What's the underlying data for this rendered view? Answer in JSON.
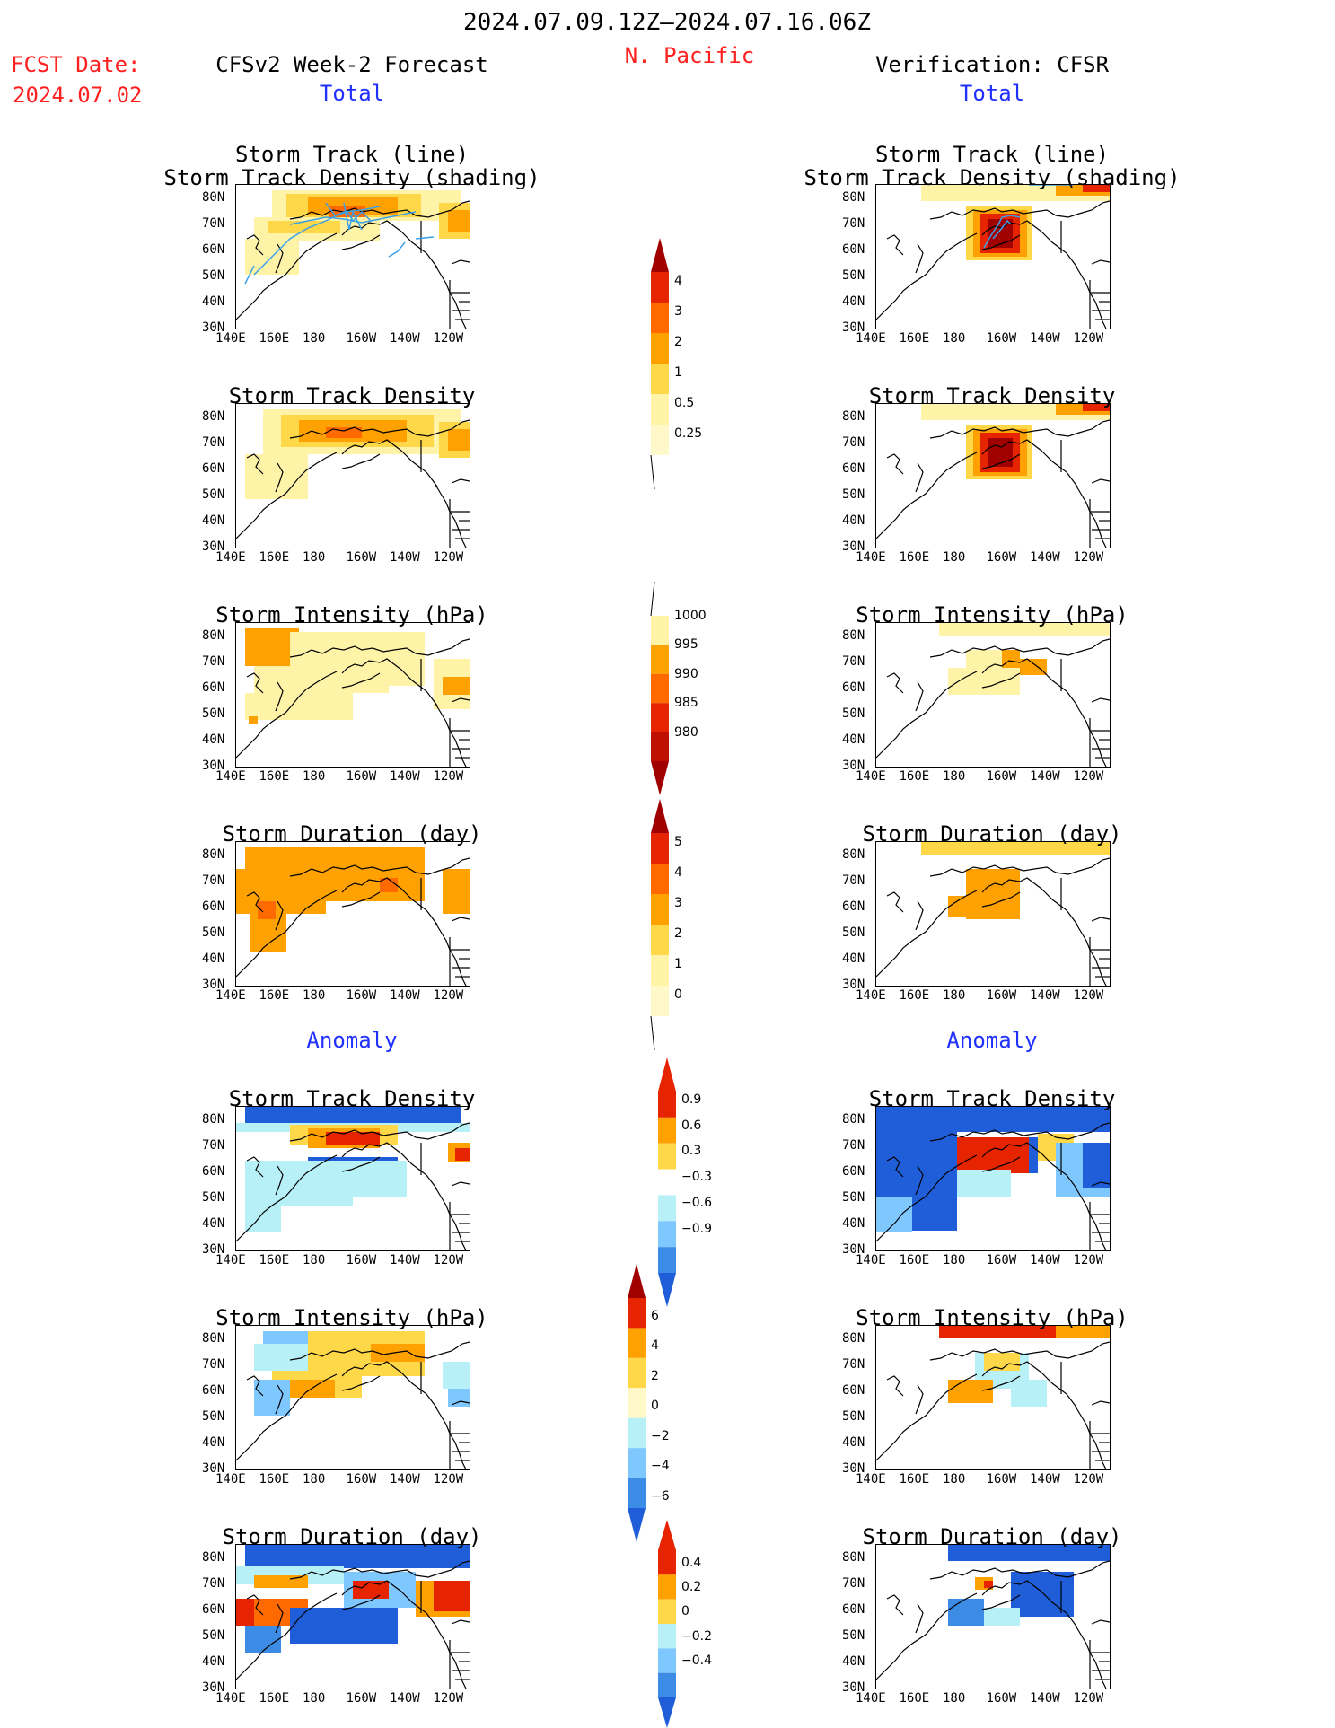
{
  "header": {
    "date_range": "2024.07.09.12Z–2024.07.16.06Z",
    "region": "N. Pacific",
    "fcst_date_label": "FCST Date:",
    "fcst_date_value": "2024.07.02",
    "left_model": "CFSv2 Week-2 Forecast",
    "right_model": "Verification: CFSR",
    "total_label": "Total",
    "anomaly_label": "Anomaly"
  },
  "axes": {
    "lat_ticks": [
      "80N",
      "70N",
      "60N",
      "50N",
      "40N",
      "30N"
    ],
    "lon_ticks": [
      "140E",
      "160E",
      "180",
      "160W",
      "140W",
      "120W"
    ]
  },
  "panel_titles": {
    "track_line": "Storm Track (line)",
    "track_shading": "Storm Track Density (shading)",
    "track_density": "Storm Track Density",
    "intensity": "Storm Intensity (hPa)",
    "duration": "Storm Duration (day)"
  },
  "colors": {
    "lightyellow": "#fff3a8",
    "yellow": "#ffd84a",
    "orange": "#ffa100",
    "darkorange": "#ff6a00",
    "red": "#e62400",
    "darkred": "#a00000",
    "lightblue": "#b8f0f8",
    "skyblue": "#7fc8ff",
    "blue": "#3c8ce6",
    "darkblue": "#1f5ed8",
    "track": "#3aa0e8"
  },
  "chart_data": [
    {
      "type": "heatmap",
      "name": "CFSv2 Total Storm Track Density",
      "colorbar_levels": [
        0.25,
        0.5,
        1,
        2,
        3,
        4
      ]
    },
    {
      "type": "heatmap",
      "name": "CFSR Total Storm Track Density",
      "colorbar_levels": [
        0.25,
        0.5,
        1,
        2,
        3,
        4
      ]
    },
    {
      "type": "heatmap",
      "name": "CFSv2 Total Storm Intensity (hPa)",
      "colorbar_levels": [
        1000,
        995,
        990,
        985,
        980
      ]
    },
    {
      "type": "heatmap",
      "name": "CFSR Total Storm Intensity (hPa)",
      "colorbar_levels": [
        1000,
        995,
        990,
        985,
        980
      ]
    },
    {
      "type": "heatmap",
      "name": "CFSv2 Total Storm Duration (day)",
      "colorbar_levels": [
        0,
        1,
        2,
        3,
        4,
        5
      ]
    },
    {
      "type": "heatmap",
      "name": "CFSR Total Storm Duration (day)",
      "colorbar_levels": [
        0,
        1,
        2,
        3,
        4,
        5
      ]
    },
    {
      "type": "heatmap",
      "name": "Anomaly Storm Track Density",
      "colorbar_levels": [
        0.9,
        0.6,
        0.3,
        -0.3,
        -0.6,
        -0.9
      ]
    },
    {
      "type": "heatmap",
      "name": "Anomaly Storm Intensity (hPa)",
      "colorbar_levels": [
        6,
        4,
        2,
        0,
        -2,
        -4,
        -6
      ]
    },
    {
      "type": "heatmap",
      "name": "Anomaly Storm Duration (day)",
      "colorbar_levels": [
        0.4,
        0.2,
        0,
        -0.2,
        -0.4
      ]
    }
  ],
  "colorbars": {
    "density": [
      "4",
      "3",
      "2",
      "1",
      "0.5",
      "0.25"
    ],
    "intensity": [
      "1000",
      "995",
      "990",
      "985",
      "980"
    ],
    "duration": [
      "5",
      "4",
      "3",
      "2",
      "1",
      "0"
    ],
    "anom_density": [
      "0.9",
      "0.6",
      "0.3",
      "−0.3",
      "−0.6",
      "−0.9"
    ],
    "anom_intensity": [
      "6",
      "4",
      "2",
      "0",
      "−2",
      "−4",
      "−6"
    ],
    "anom_duration": [
      "0.4",
      "0.2",
      "0",
      "−0.2",
      "−0.4"
    ]
  }
}
